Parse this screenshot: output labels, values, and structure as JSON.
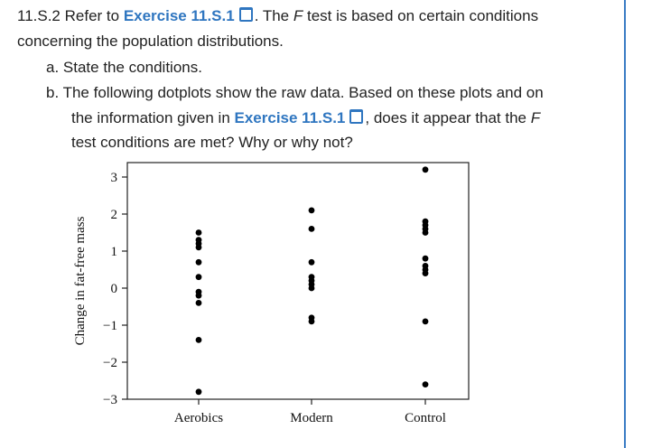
{
  "exercise": {
    "number": "11.S.2",
    "intro_pre": " Refer to ",
    "ref_link": "Exercise 11.S.1",
    "intro_mid": ". The ",
    "f_letter": "F",
    "intro_post": " test is based on certain conditions",
    "intro_line2": "concerning the population distributions.",
    "part_a": "a. State the conditions.",
    "part_b_line1": "b. The following dotplots show the raw data. Based on these plots and on",
    "part_b_line2_pre": "the information given in ",
    "part_b_link": "Exercise 11.S.1",
    "part_b_line2_mid": ", does it appear that the ",
    "part_b_f": "F",
    "part_b_line3": "test conditions are met? Why or why not?"
  },
  "accent_color": "#2f76c0",
  "chart_data": {
    "type": "scatter",
    "ylabel": "Change in fat-free mass",
    "xlabel": "",
    "ylim": [
      -3.3,
      3.6
    ],
    "yticks": [
      3,
      2,
      1,
      0,
      -1,
      -2,
      -3
    ],
    "ytick_labels": [
      "3",
      "2",
      "1",
      "0",
      "−1",
      "−2",
      "−3"
    ],
    "categories": [
      "Aerobics",
      "Modern",
      "Control"
    ],
    "series": [
      {
        "values": [
          1.5,
          1.3,
          1.2,
          1.1,
          0.7,
          0.3,
          -0.1,
          -0.2,
          -0.4,
          -1.4,
          -2.8
        ]
      },
      {
        "values": [
          2.1,
          1.6,
          0.7,
          0.3,
          0.2,
          0.1,
          0.0,
          -0.8,
          -0.9
        ]
      },
      {
        "values": [
          3.2,
          1.8,
          1.7,
          1.6,
          1.5,
          0.8,
          0.6,
          0.5,
          0.4,
          -0.9,
          -2.6
        ]
      }
    ]
  }
}
